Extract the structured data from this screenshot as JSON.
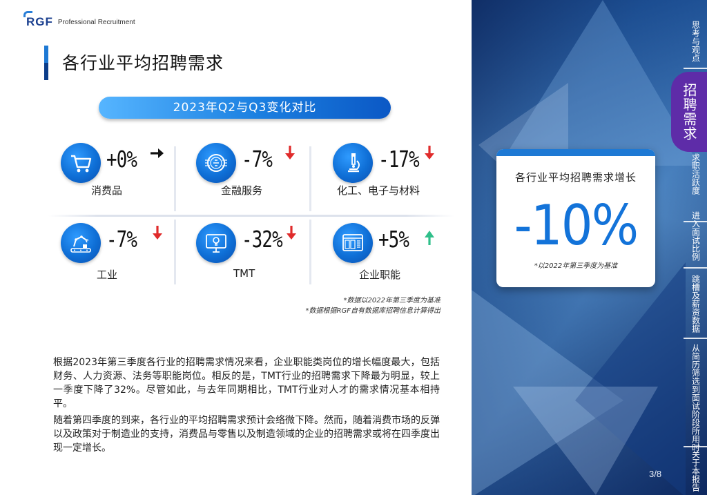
{
  "header": {
    "logo_mark": "RGF",
    "logo_text": "Professional Recruitment",
    "page_title": "各行业平均招聘需求"
  },
  "comparison": {
    "label": "2023年Q2与Q3变化对比"
  },
  "industries": [
    {
      "name": "消费品",
      "change": "+0%",
      "trend": "flat",
      "icon": "shopping-cart-icon"
    },
    {
      "name": "金融服务",
      "change": "-7%",
      "trend": "down",
      "icon": "coin-icon"
    },
    {
      "name": "化工、电子与材料",
      "change": "-17%",
      "trend": "down",
      "icon": "microscope-icon"
    },
    {
      "name": "工业",
      "change": "-7%",
      "trend": "down",
      "icon": "robot-arm-icon"
    },
    {
      "name": "TMT",
      "change": "-32%",
      "trend": "down",
      "icon": "monitor-lightbulb-icon"
    },
    {
      "name": "企业职能",
      "change": "+5%",
      "trend": "up",
      "icon": "dashboard-icon"
    }
  ],
  "colors": {
    "down_arrow": "#e02b2b",
    "up_arrow": "#2fbf8a",
    "flat_arrow": "#111111",
    "accent": "#1373d9",
    "nav_active": "#5e2ca8"
  },
  "notes": [
    "*数据以2022年第三季度为基准",
    "*数据根据RGF自有数据库招聘信息计算得出"
  ],
  "body": {
    "paragraph_1": "根据2023年第三季度各行业的招聘需求情况来看，企业职能类岗位的增长幅度最大，包括财务、人力资源、法务等职能岗位。相反的是，TMT行业的招聘需求下降最为明显，较上一季度下降了32%。尽管如此，与去年同期相比，TMT行业对人才的需求情况基本相持平。",
    "paragraph_2": "随着第四季度的到来，各行业的平均招聘需求预计会络微下降。然而，随着消费市场的反弹以及政策对于制造业的支持，消费品与零售以及制造领域的企业的招聘需求或将在四季度出现一定增长。"
  },
  "stat_card": {
    "title": "各行业平均招聘需求增长",
    "value": "-10%",
    "note": "*以2022年第三季度为基准"
  },
  "side_nav": {
    "items": [
      "思考与观点",
      "招聘需求",
      "求职活跃度",
      "进入面试比例",
      "跳槽及薪资数据",
      "从简历筛选到面试阶段所用时",
      "关于本报告"
    ],
    "active_index": 1
  },
  "page_number": "3/8"
}
